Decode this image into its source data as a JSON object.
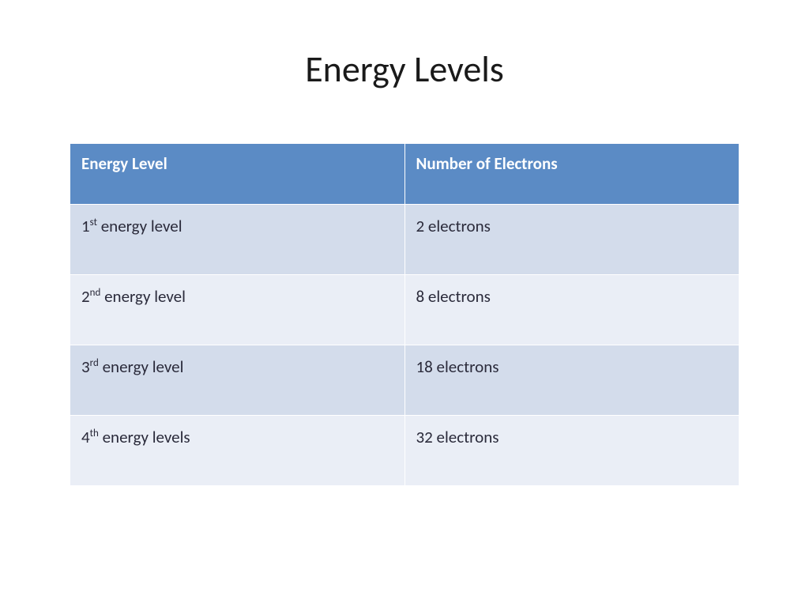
{
  "title": "Energy Levels",
  "table": {
    "type": "table",
    "header_bg": "#5b8bc5",
    "header_color": "#ffffff",
    "row_odd_bg": "#d3dceb",
    "row_even_bg": "#eaeef6",
    "text_color": "#2a2a3a",
    "border_color": "#ffffff",
    "title_fontsize": 46,
    "cell_fontsize": 21,
    "columns": [
      "Energy Level",
      "Number of Electrons"
    ],
    "rows": [
      {
        "ordinal_num": "1",
        "ordinal_suffix": "st",
        "level_rest": " energy level",
        "electrons": "2 electrons"
      },
      {
        "ordinal_num": "2",
        "ordinal_suffix": "nd",
        "level_rest": " energy level",
        "electrons": "8 electrons"
      },
      {
        "ordinal_num": "3",
        "ordinal_suffix": "rd",
        "level_rest": " energy level",
        "electrons": "18 electrons"
      },
      {
        "ordinal_num": "4",
        "ordinal_suffix": "th",
        "level_rest": " energy levels",
        "electrons": "32 electrons"
      }
    ]
  }
}
